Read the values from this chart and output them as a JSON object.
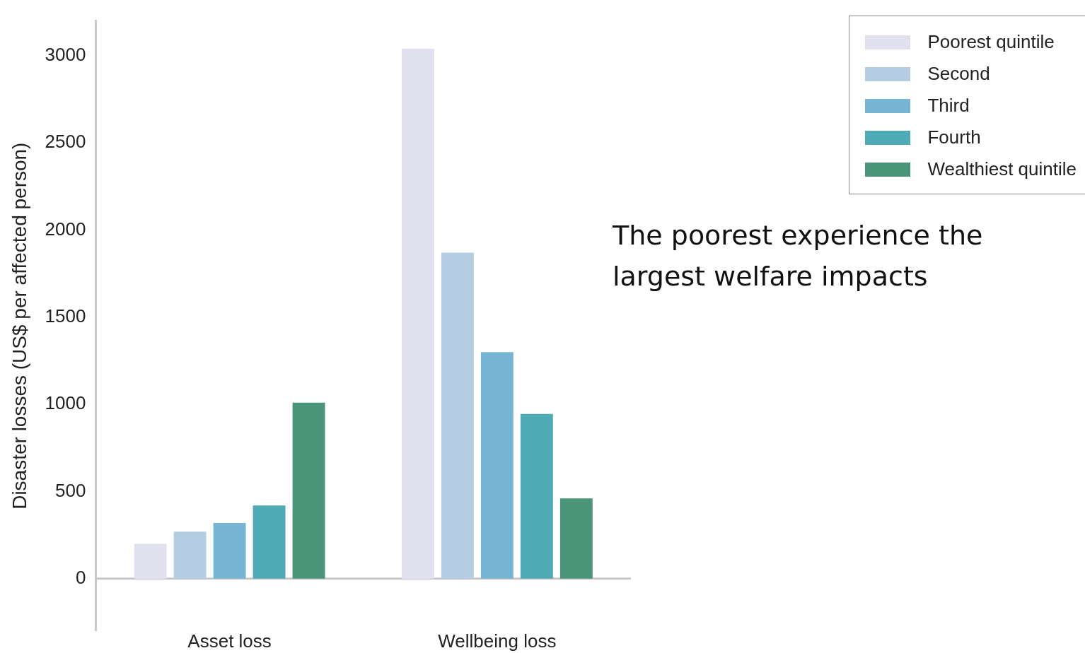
{
  "chart_data": {
    "type": "bar",
    "ylabel": "Disaster losses (US$ per affected person)",
    "categories": [
      "Asset loss",
      "Wellbeing loss"
    ],
    "series": [
      {
        "name": "Poorest quintile",
        "color": "#e0e0ee",
        "values": [
          200,
          3040
        ]
      },
      {
        "name": "Second",
        "color": "#b5cde3",
        "values": [
          270,
          1870
        ]
      },
      {
        "name": "Third",
        "color": "#77b5d4",
        "values": [
          320,
          1300
        ]
      },
      {
        "name": "Fourth",
        "color": "#4fabb6",
        "values": [
          420,
          945
        ]
      },
      {
        "name": "Wealthiest quintile",
        "color": "#4a9479",
        "values": [
          1010,
          460
        ]
      }
    ],
    "ylim": [
      -300,
      3200
    ],
    "yticks": [
      0,
      500,
      1000,
      1500,
      2000,
      2500,
      3000
    ],
    "legend": "top right",
    "annotations": [
      "The poorest experience the largest welfare impacts"
    ]
  }
}
